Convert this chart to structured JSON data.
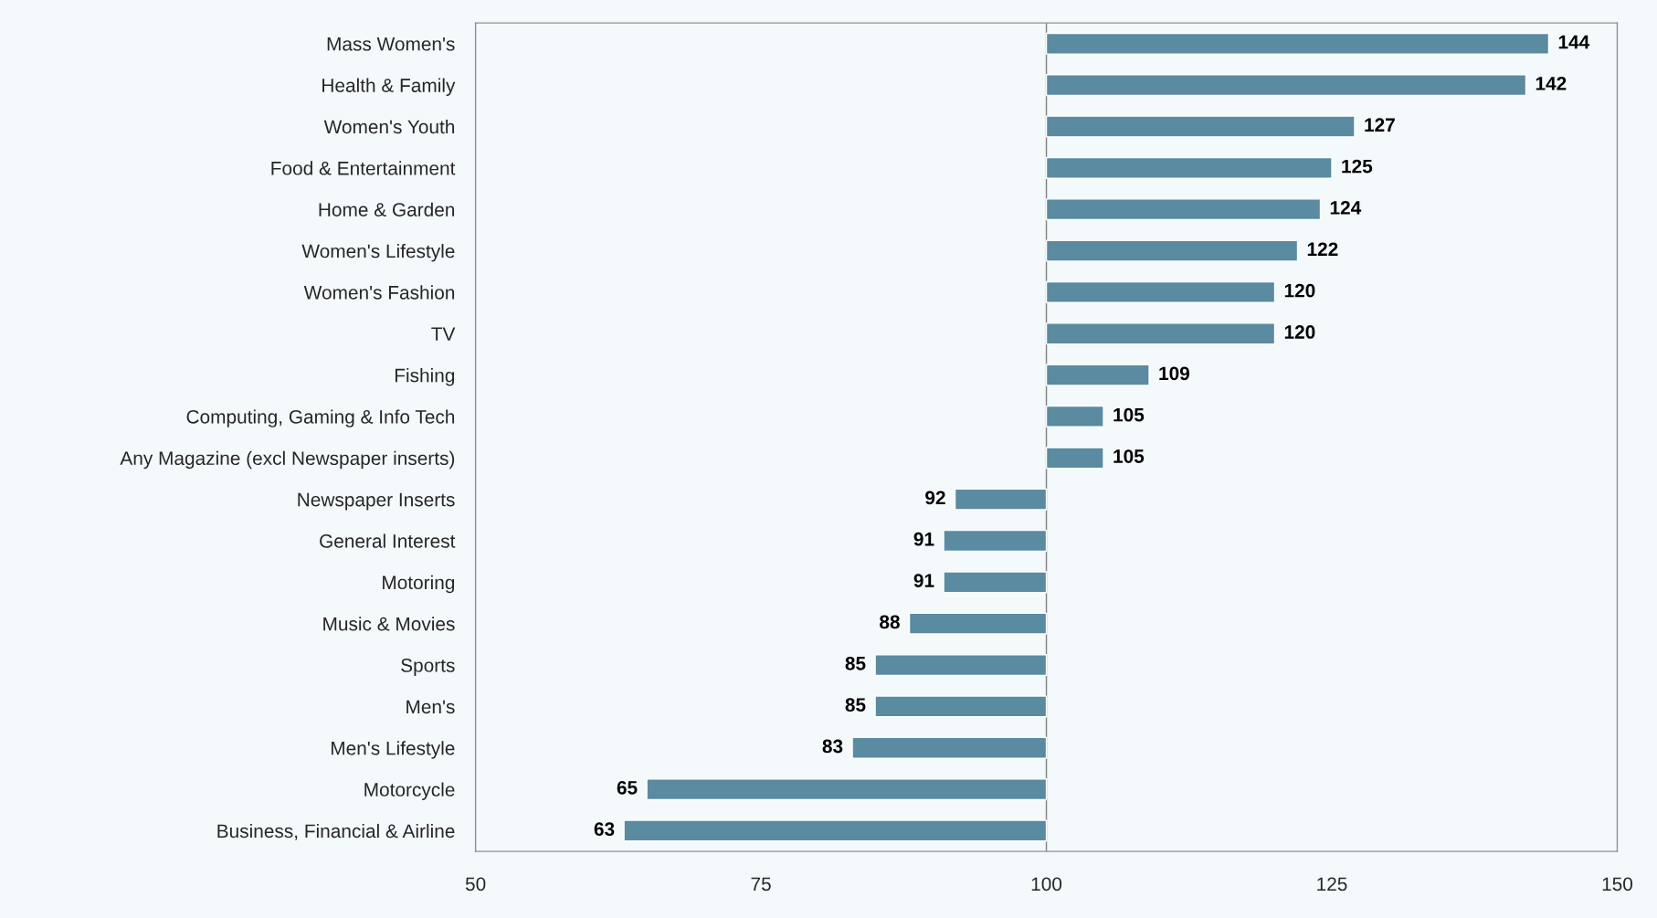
{
  "chart_data": {
    "type": "bar",
    "orientation": "horizontal",
    "categories": [
      "Mass Women's",
      "Health & Family",
      "Women's Youth",
      "Food & Entertainment",
      "Home & Garden",
      "Women's Lifestyle",
      "Women's Fashion",
      "TV",
      "Fishing",
      "Computing, Gaming & Info Tech",
      "Any Magazine (excl Newspaper inserts)",
      "Newspaper Inserts",
      "General Interest",
      "Motoring",
      "Music & Movies",
      "Sports",
      "Men's",
      "Men's Lifestyle",
      "Motorcycle",
      "Business, Financial & Airline"
    ],
    "base": [
      100,
      100,
      100,
      100,
      100,
      100,
      100,
      100,
      100,
      100,
      100,
      100,
      100,
      100,
      100,
      100,
      100,
      100,
      100,
      100
    ],
    "values": [
      44,
      42,
      27,
      25,
      24,
      22,
      20,
      20,
      9,
      5,
      5,
      -8,
      -9,
      -9,
      -12,
      -15,
      -15,
      -17,
      -35,
      -37
    ],
    "value_labels": [
      "144",
      "142",
      "127",
      "125",
      "124",
      "122",
      "120",
      "120",
      "109",
      "105",
      "105",
      "92",
      "91",
      "91",
      "88",
      "85",
      "85",
      "83",
      "65",
      "63"
    ],
    "color": "#5a8ba0",
    "xlim": [
      50,
      150
    ],
    "xticks": [
      50,
      75,
      100,
      125,
      150
    ],
    "ref_lines": [
      {
        "axis": "x",
        "value": 100,
        "color": "#808080"
      }
    ],
    "grid": false,
    "legend": false
  }
}
